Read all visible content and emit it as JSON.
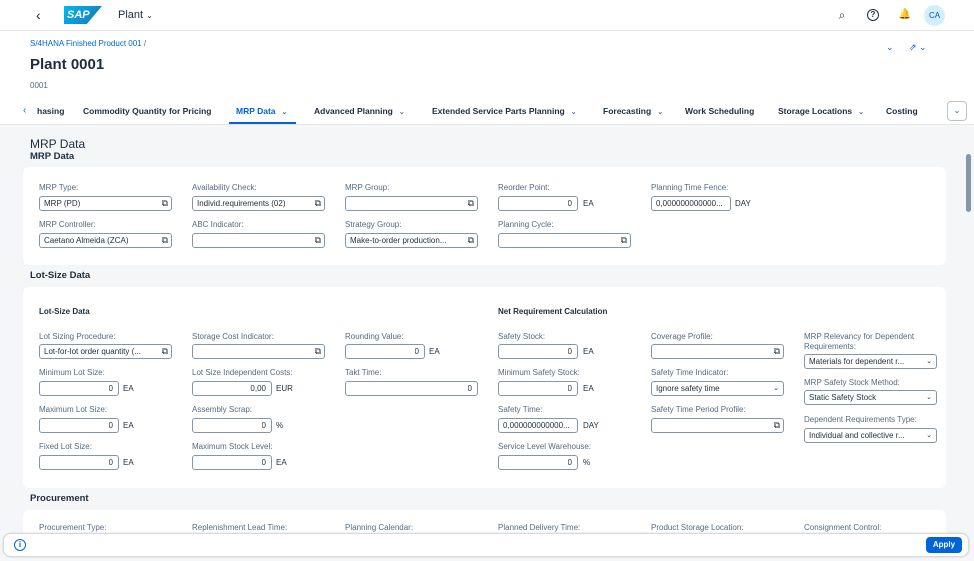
{
  "shell": {
    "back_glyph": "‹",
    "logo": "SAP",
    "app_title": "Plant",
    "app_title_glyph": "⌄",
    "icons": {
      "search": "⌕",
      "help": "?",
      "bell": "🔔"
    },
    "avatar": "CA"
  },
  "header": {
    "breadcrumb": "S/4HANA Finished Product 001",
    "breadcrumb_sep": "/",
    "title": "Plant 0001",
    "subtitle": "0001",
    "actions": {
      "collapse": "⌄",
      "share": "⇗ ⌄"
    }
  },
  "tabs": {
    "left_glyph": "‹",
    "more_glyph": "⌄",
    "dd_glyph": "⌄",
    "items": [
      {
        "label": "hasing"
      },
      {
        "label": "Commodity Quantity for Pricing"
      },
      {
        "label": "MRP Data",
        "selected": true
      },
      {
        "label": "Advanced Planning"
      },
      {
        "label": "Extended Service Parts Planning"
      },
      {
        "label": "Forecasting"
      },
      {
        "label": "Work Scheduling"
      },
      {
        "label": "Storage Locations"
      },
      {
        "label": "Costing"
      }
    ]
  },
  "mrp": {
    "section_title": "MRP Data",
    "subsection_title": "MRP Data",
    "fields": {
      "mrp_type": {
        "label": "MRP Type:",
        "value": "MRP (PD)"
      },
      "availability_check": {
        "label": "Availability Check:",
        "value": "Individ.requirements (02)"
      },
      "mrp_group": {
        "label": "MRP Group:",
        "value": ""
      },
      "reorder_point": {
        "label": "Reorder Point:",
        "value": "0",
        "unit": "EA"
      },
      "planning_time_fence": {
        "label": "Planning Time Fence:",
        "value": "0,000000000000...",
        "unit": "DAY"
      },
      "mrp_controller": {
        "label": "MRP Controller:",
        "value": "Caetano Almeida (ZCA)"
      },
      "abc_indicator": {
        "label": "ABC Indicator:",
        "value": ""
      },
      "strategy_group": {
        "label": "Strategy Group:",
        "value": "Make-to-order production..."
      },
      "planning_cycle": {
        "label": "Planning Cycle:",
        "value": ""
      }
    }
  },
  "lotsize": {
    "section_title": "Lot-Size Data",
    "group_left": "Lot-Size Data",
    "group_right": "Net Requirement Calculation",
    "fields": {
      "lot_sizing_procedure": {
        "label": "Lot Sizing Procedure:",
        "value": "Lot-for-lot order quantity (..."
      },
      "storage_cost_indicator": {
        "label": "Storage Cost Indicator:",
        "value": ""
      },
      "rounding_value": {
        "label": "Rounding Value:",
        "value": "0",
        "unit": "EA"
      },
      "safety_stock": {
        "label": "Safety Stock:",
        "value": "0",
        "unit": "EA"
      },
      "coverage_profile": {
        "label": "Coverage Profile:",
        "value": ""
      },
      "mrp_relevancy": {
        "label": "MRP Relevancy for Dependent Requirements:",
        "label_line1": "MRP Relevancy for Dependent",
        "label_line2": "Requirements:",
        "value": "Materials for dependent r..."
      },
      "minimum_lot_size": {
        "label": "Minimum Lot Size:",
        "value": "0",
        "unit": "EA"
      },
      "lot_size_independent_costs": {
        "label": "Lot Size Independent Costs:",
        "value": "0,00",
        "unit": "EUR"
      },
      "takt_time": {
        "label": "Takt Time:",
        "value": "0"
      },
      "minimum_safety_stock": {
        "label": "Minimum Safety Stock:",
        "value": "0",
        "unit": "EA"
      },
      "safety_time_indicator": {
        "label": "Safety Time Indicator:",
        "value": "Ignore safety time"
      },
      "mrp_safety_stock_method": {
        "label": "MRP Safety Stock Method:",
        "value": "Static Safety Stock"
      },
      "maximum_lot_size": {
        "label": "Maximum Lot Size:",
        "value": "0",
        "unit": "EA"
      },
      "assembly_scrap": {
        "label": "Assembly Scrap:",
        "value": "0",
        "unit": "%"
      },
      "safety_time": {
        "label": "Safety Time:",
        "value": "0,000000000000...",
        "unit": "DAY"
      },
      "safety_time_period_profile": {
        "label": "Safety Time Period Profile:",
        "value": ""
      },
      "dependent_requirements_type": {
        "label": "Dependent Requirements Type:",
        "value": "Individual and collective r..."
      },
      "fixed_lot_size": {
        "label": "Fixed Lot Size:",
        "value": "0",
        "unit": "EA"
      },
      "maximum_stock_level": {
        "label": "Maximum Stock Level:",
        "value": "0",
        "unit": "EA"
      },
      "service_level_warehouse": {
        "label": "Service Level Warehouse:",
        "value": "0",
        "unit": "%"
      }
    }
  },
  "procurement": {
    "section_title": "Procurement",
    "labels": [
      "Procurement Type:",
      "Replenishment Lead Time:",
      "Planning Calendar:",
      "Planned Delivery Time:",
      "Product Storage Location:",
      "Consignment Control:"
    ]
  },
  "footer": {
    "message_glyph": "i",
    "apply_label": "Apply"
  },
  "glyphs": {
    "value_help": "⧉",
    "dropdown": "⌄"
  },
  "colors": {
    "accent": "#0064d9",
    "background": "#f5f6f7",
    "text": "#1d2d3e"
  }
}
